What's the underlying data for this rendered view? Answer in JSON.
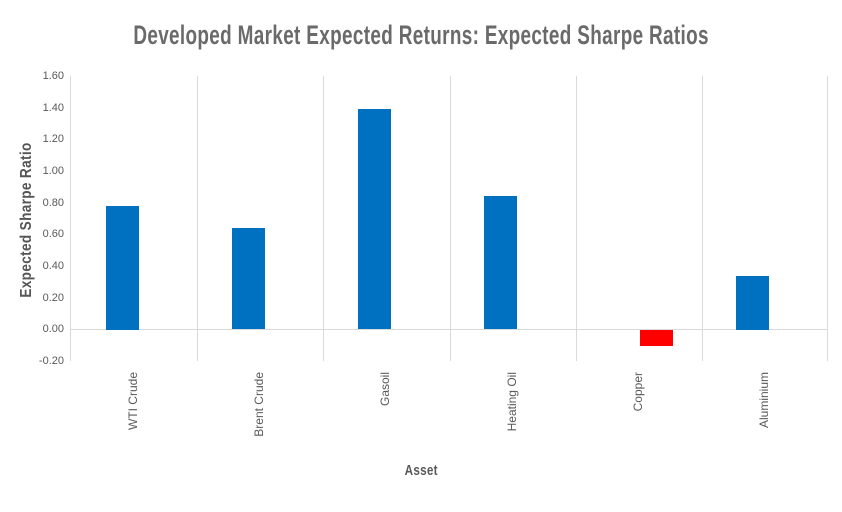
{
  "chart_data": {
    "type": "bar",
    "title": "Developed Market Expected Returns: Expected Sharpe Ratios",
    "xlabel": "Asset",
    "ylabel": "Expected Sharpe Ratio",
    "categories": [
      "WTI Crude",
      "Brent Crude",
      "Gasoil",
      "Heating Oil",
      "Copper",
      "Aluminium"
    ],
    "values": [
      0.78,
      0.64,
      1.39,
      0.84,
      -0.1,
      0.34
    ],
    "ylim": [
      -0.2,
      1.6
    ],
    "ytick_step": 0.2,
    "ytick_labels": [
      "1.60",
      "1.40",
      "1.20",
      "1.00",
      "0.80",
      "0.60",
      "0.40",
      "0.20",
      "0.00",
      "-0.20"
    ],
    "grid": "vertical category separators + zero line only, no horizontal gridlines",
    "legend_position": "none",
    "colors": {
      "positive_bar": "#0070C0",
      "negative_bar": "#FF0000",
      "gridline": "#D9D9D9",
      "title_text": "#6A6A6A",
      "axis_text": "#595959"
    }
  }
}
